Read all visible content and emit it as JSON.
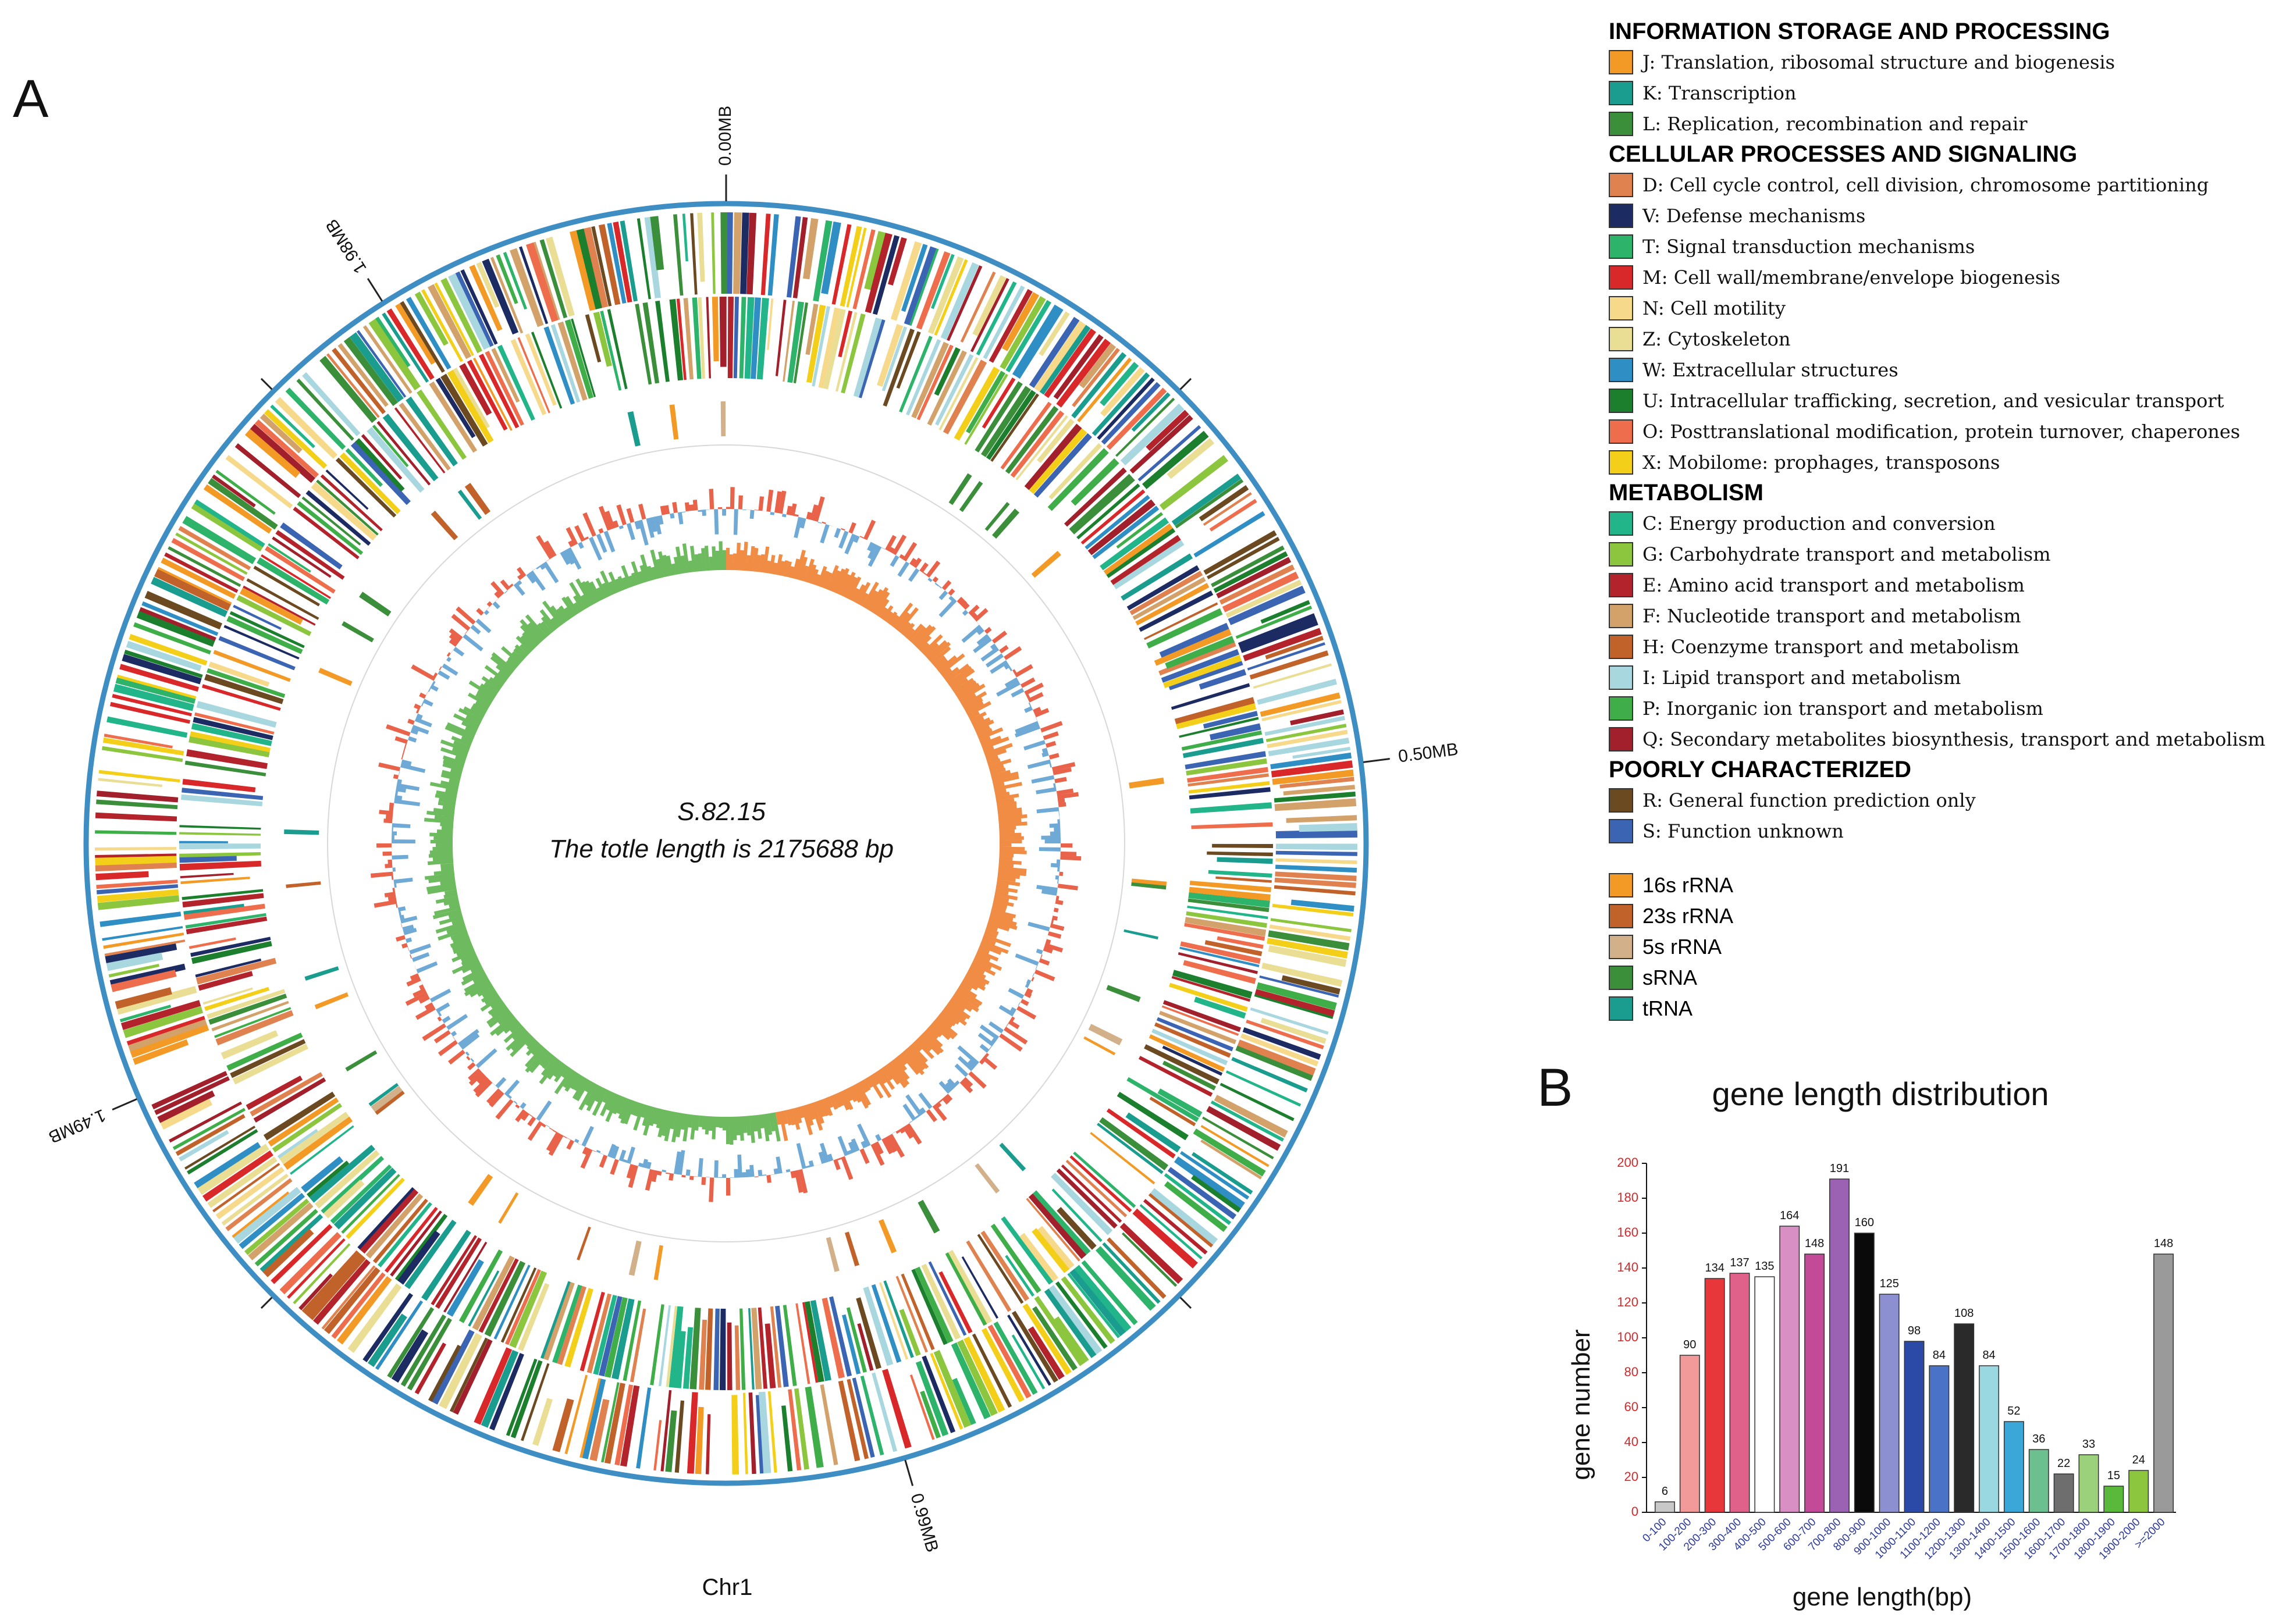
{
  "panels": {
    "a": "A",
    "b": "B"
  },
  "genome": {
    "name": "S.82.15",
    "subtitle": "The totle length is 2175688 bp",
    "chromosome": "Chr1",
    "total_length_bp": 2175688,
    "ticks": [
      {
        "label": "0.00MB",
        "pos_mb": 0.0
      },
      {
        "label": "0.50MB",
        "pos_mb": 0.5
      },
      {
        "label": "0.99MB",
        "pos_mb": 0.99
      },
      {
        "label": "1.49MB",
        "pos_mb": 1.49
      },
      {
        "label": "1.98MB",
        "pos_mb": 1.98
      }
    ],
    "colors": {
      "outer_ring": "#3e8ec4",
      "gc_pos": "#e8634a",
      "gc_neg": "#6faad6",
      "skew_pos": "#f08c44",
      "skew_neg": "#6dbb5e"
    }
  },
  "legend": {
    "groups": [
      {
        "header": "INFORMATION STORAGE AND PROCESSING",
        "items": [
          {
            "label": "J: Translation, ribosomal structure and biogenesis",
            "color": "#f39a26"
          },
          {
            "label": "K: Transcription",
            "color": "#1a9d8f"
          },
          {
            "label": "L: Replication, recombination and repair",
            "color": "#3b8e3a"
          }
        ]
      },
      {
        "header": "CELLULAR PROCESSES AND SIGNALING",
        "items": [
          {
            "label": "D: Cell cycle control, cell division, chromosome partitioning",
            "color": "#e08250"
          },
          {
            "label": "V: Defense mechanisms",
            "color": "#1d2b63"
          },
          {
            "label": "T: Signal transduction mechanisms",
            "color": "#2db36a"
          },
          {
            "label": "M: Cell wall/membrane/envelope biogenesis",
            "color": "#d8282a"
          },
          {
            "label": "N: Cell motility",
            "color": "#f6d98a"
          },
          {
            "label": "Z: Cytoskeleton",
            "color": "#eadd94"
          },
          {
            "label": "W: Extracellular structures",
            "color": "#2f8fc5"
          },
          {
            "label": "U: Intracellular trafficking, secretion, and vesicular transport",
            "color": "#1c7f2e"
          },
          {
            "label": "O: Posttranslational modification, protein turnover, chaperones",
            "color": "#ee6d4c"
          },
          {
            "label": "X: Mobilome: prophages, transposons",
            "color": "#f4cf1a"
          }
        ]
      },
      {
        "header": "METABOLISM",
        "items": [
          {
            "label": "C: Energy production and conversion",
            "color": "#22b58a"
          },
          {
            "label": "G: Carbohydrate transport and metabolism",
            "color": "#8cc63e"
          },
          {
            "label": "E: Amino acid transport and metabolism",
            "color": "#b3232b"
          },
          {
            "label": "F: Nucleotide transport and metabolism",
            "color": "#d2a26a"
          },
          {
            "label": "H: Coenzyme transport and metabolism",
            "color": "#c0622a"
          },
          {
            "label": "I: Lipid transport and metabolism",
            "color": "#a9d7e0"
          },
          {
            "label": "P: Inorganic ion transport and metabolism",
            "color": "#3fae49"
          },
          {
            "label": "Q: Secondary metabolites biosynthesis, transport and metabolism",
            "color": "#a2202b"
          }
        ]
      },
      {
        "header": "POORLY CHARACTERIZED",
        "items": [
          {
            "label": "R: General function prediction only",
            "color": "#6b4a22"
          },
          {
            "label": "S: Function unknown",
            "color": "#3b64b2"
          }
        ]
      }
    ],
    "rna": [
      {
        "label": "16s rRNA",
        "color": "#f39a26"
      },
      {
        "label": "23s rRNA",
        "color": "#c0622a"
      },
      {
        "label": "5s rRNA",
        "color": "#d2b08a"
      },
      {
        "label": "sRNA",
        "color": "#3b8e3a"
      },
      {
        "label": "tRNA",
        "color": "#1a9d8f"
      }
    ]
  },
  "chart_data": {
    "type": "bar",
    "title": "gene length distribution",
    "xlabel": "gene length(bp)",
    "ylabel": "gene number",
    "ylim": [
      0,
      200
    ],
    "yticks": [
      0,
      20,
      40,
      60,
      80,
      100,
      120,
      140,
      160,
      180,
      200
    ],
    "categories": [
      "0-100",
      "100-200",
      "200-300",
      "300-400",
      "400-500",
      "500-600",
      "600-700",
      "700-800",
      "800-900",
      "900-1000",
      "1000-1100",
      "1100-1200",
      "1200-1300",
      "1300-1400",
      "1400-1500",
      "1500-1600",
      "1600-1700",
      "1700-1800",
      "1800-1900",
      "1900-2000",
      ">=2000"
    ],
    "values": [
      6,
      90,
      134,
      137,
      135,
      164,
      148,
      191,
      160,
      125,
      98,
      84,
      108,
      84,
      52,
      36,
      22,
      33,
      15,
      24,
      148
    ],
    "colors": [
      "#c8c8c8",
      "#f29999",
      "#e8373b",
      "#e0618a",
      "#ffffff",
      "#d88fc4",
      "#c24a98",
      "#9b62b4",
      "#0a0a0a",
      "#8c8fd0",
      "#2b4aa8",
      "#4a73c8",
      "#2a2a2a",
      "#99d8e0",
      "#3ba7d8",
      "#6cbf8e",
      "#6e6e6e",
      "#9bd17a",
      "#5ab83a",
      "#8cc63e",
      "#9a9a9a"
    ]
  }
}
